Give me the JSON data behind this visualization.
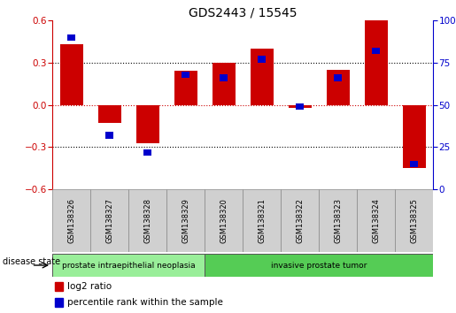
{
  "title": "GDS2443 / 15545",
  "samples": [
    "GSM138326",
    "GSM138327",
    "GSM138328",
    "GSM138329",
    "GSM138320",
    "GSM138321",
    "GSM138322",
    "GSM138323",
    "GSM138324",
    "GSM138325"
  ],
  "log2_ratio": [
    0.43,
    -0.13,
    -0.27,
    0.24,
    0.3,
    0.4,
    -0.02,
    0.25,
    0.6,
    -0.45
  ],
  "percentile_rank": [
    90,
    32,
    22,
    68,
    66,
    77,
    49,
    66,
    82,
    15
  ],
  "bar_color": "#cc0000",
  "dot_color": "#0000cc",
  "ylim_left": [
    -0.6,
    0.6
  ],
  "ylim_right": [
    0,
    100
  ],
  "yticks_left": [
    -0.6,
    -0.3,
    0,
    0.3,
    0.6
  ],
  "yticks_right": [
    0,
    25,
    50,
    75,
    100
  ],
  "hline_color": "#cc0000",
  "dotted_color": "black",
  "groups": [
    {
      "label": "prostate intraepithelial neoplasia",
      "start": 0,
      "end": 4,
      "color": "#99ee99"
    },
    {
      "label": "invasive prostate tumor",
      "start": 4,
      "end": 10,
      "color": "#55cc55"
    }
  ],
  "legend_log2": "log2 ratio",
  "legend_pct": "percentile rank within the sample",
  "disease_state_label": "disease state"
}
